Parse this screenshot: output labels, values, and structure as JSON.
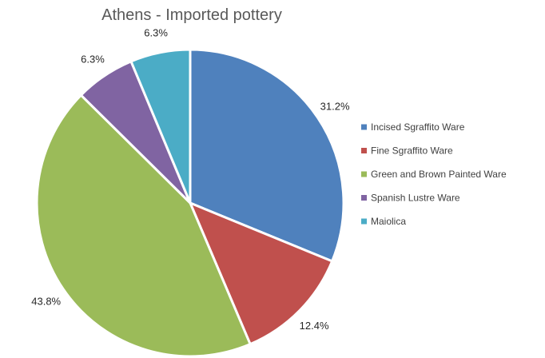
{
  "chart_data": {
    "type": "pie",
    "title": "Athens - Imported pottery",
    "categories": [
      "Incised Sgraffito Ware",
      "Fine Sgraffito Ware",
      "Green and Brown Painted Ware",
      "Spanish Lustre Ware",
      "Maiolica"
    ],
    "values": [
      31.2,
      12.4,
      43.8,
      6.3,
      6.3
    ],
    "labels": [
      "31.2%",
      "12.4%",
      "43.8%",
      "6.3%",
      "6.3%"
    ],
    "colors": [
      "#4f81bd",
      "#c0504d",
      "#9bbb59",
      "#8064a2",
      "#4bacc6"
    ],
    "legend_position": "right"
  }
}
